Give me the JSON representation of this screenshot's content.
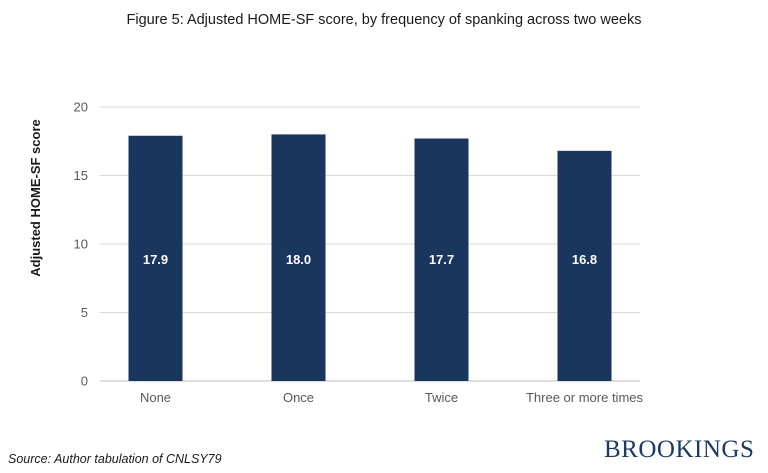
{
  "colors": {
    "bar": "#1a355e",
    "grid": "#d9d9d9",
    "axis_text": "#595959",
    "bar_label": "#ffffff",
    "brand": "#1c3a64"
  },
  "source": "Source: Author tabulation of CNLSY79",
  "brand": "BROOKINGS",
  "chart_data": {
    "type": "bar",
    "title": "Figure 5: Adjusted HOME-SF score, by frequency of spanking across two weeks",
    "xlabel": "",
    "ylabel": "Adjusted HOME-SF score",
    "ylim": [
      0,
      20
    ],
    "yticks": [
      0,
      5,
      10,
      15,
      20
    ],
    "grid": true,
    "legend": "none",
    "categories": [
      "None",
      "Once",
      "Twice",
      "Three or more times"
    ],
    "values": [
      17.9,
      18.0,
      17.7,
      16.8
    ],
    "value_labels": [
      "17.9",
      "18.0",
      "17.7",
      "16.8"
    ]
  }
}
